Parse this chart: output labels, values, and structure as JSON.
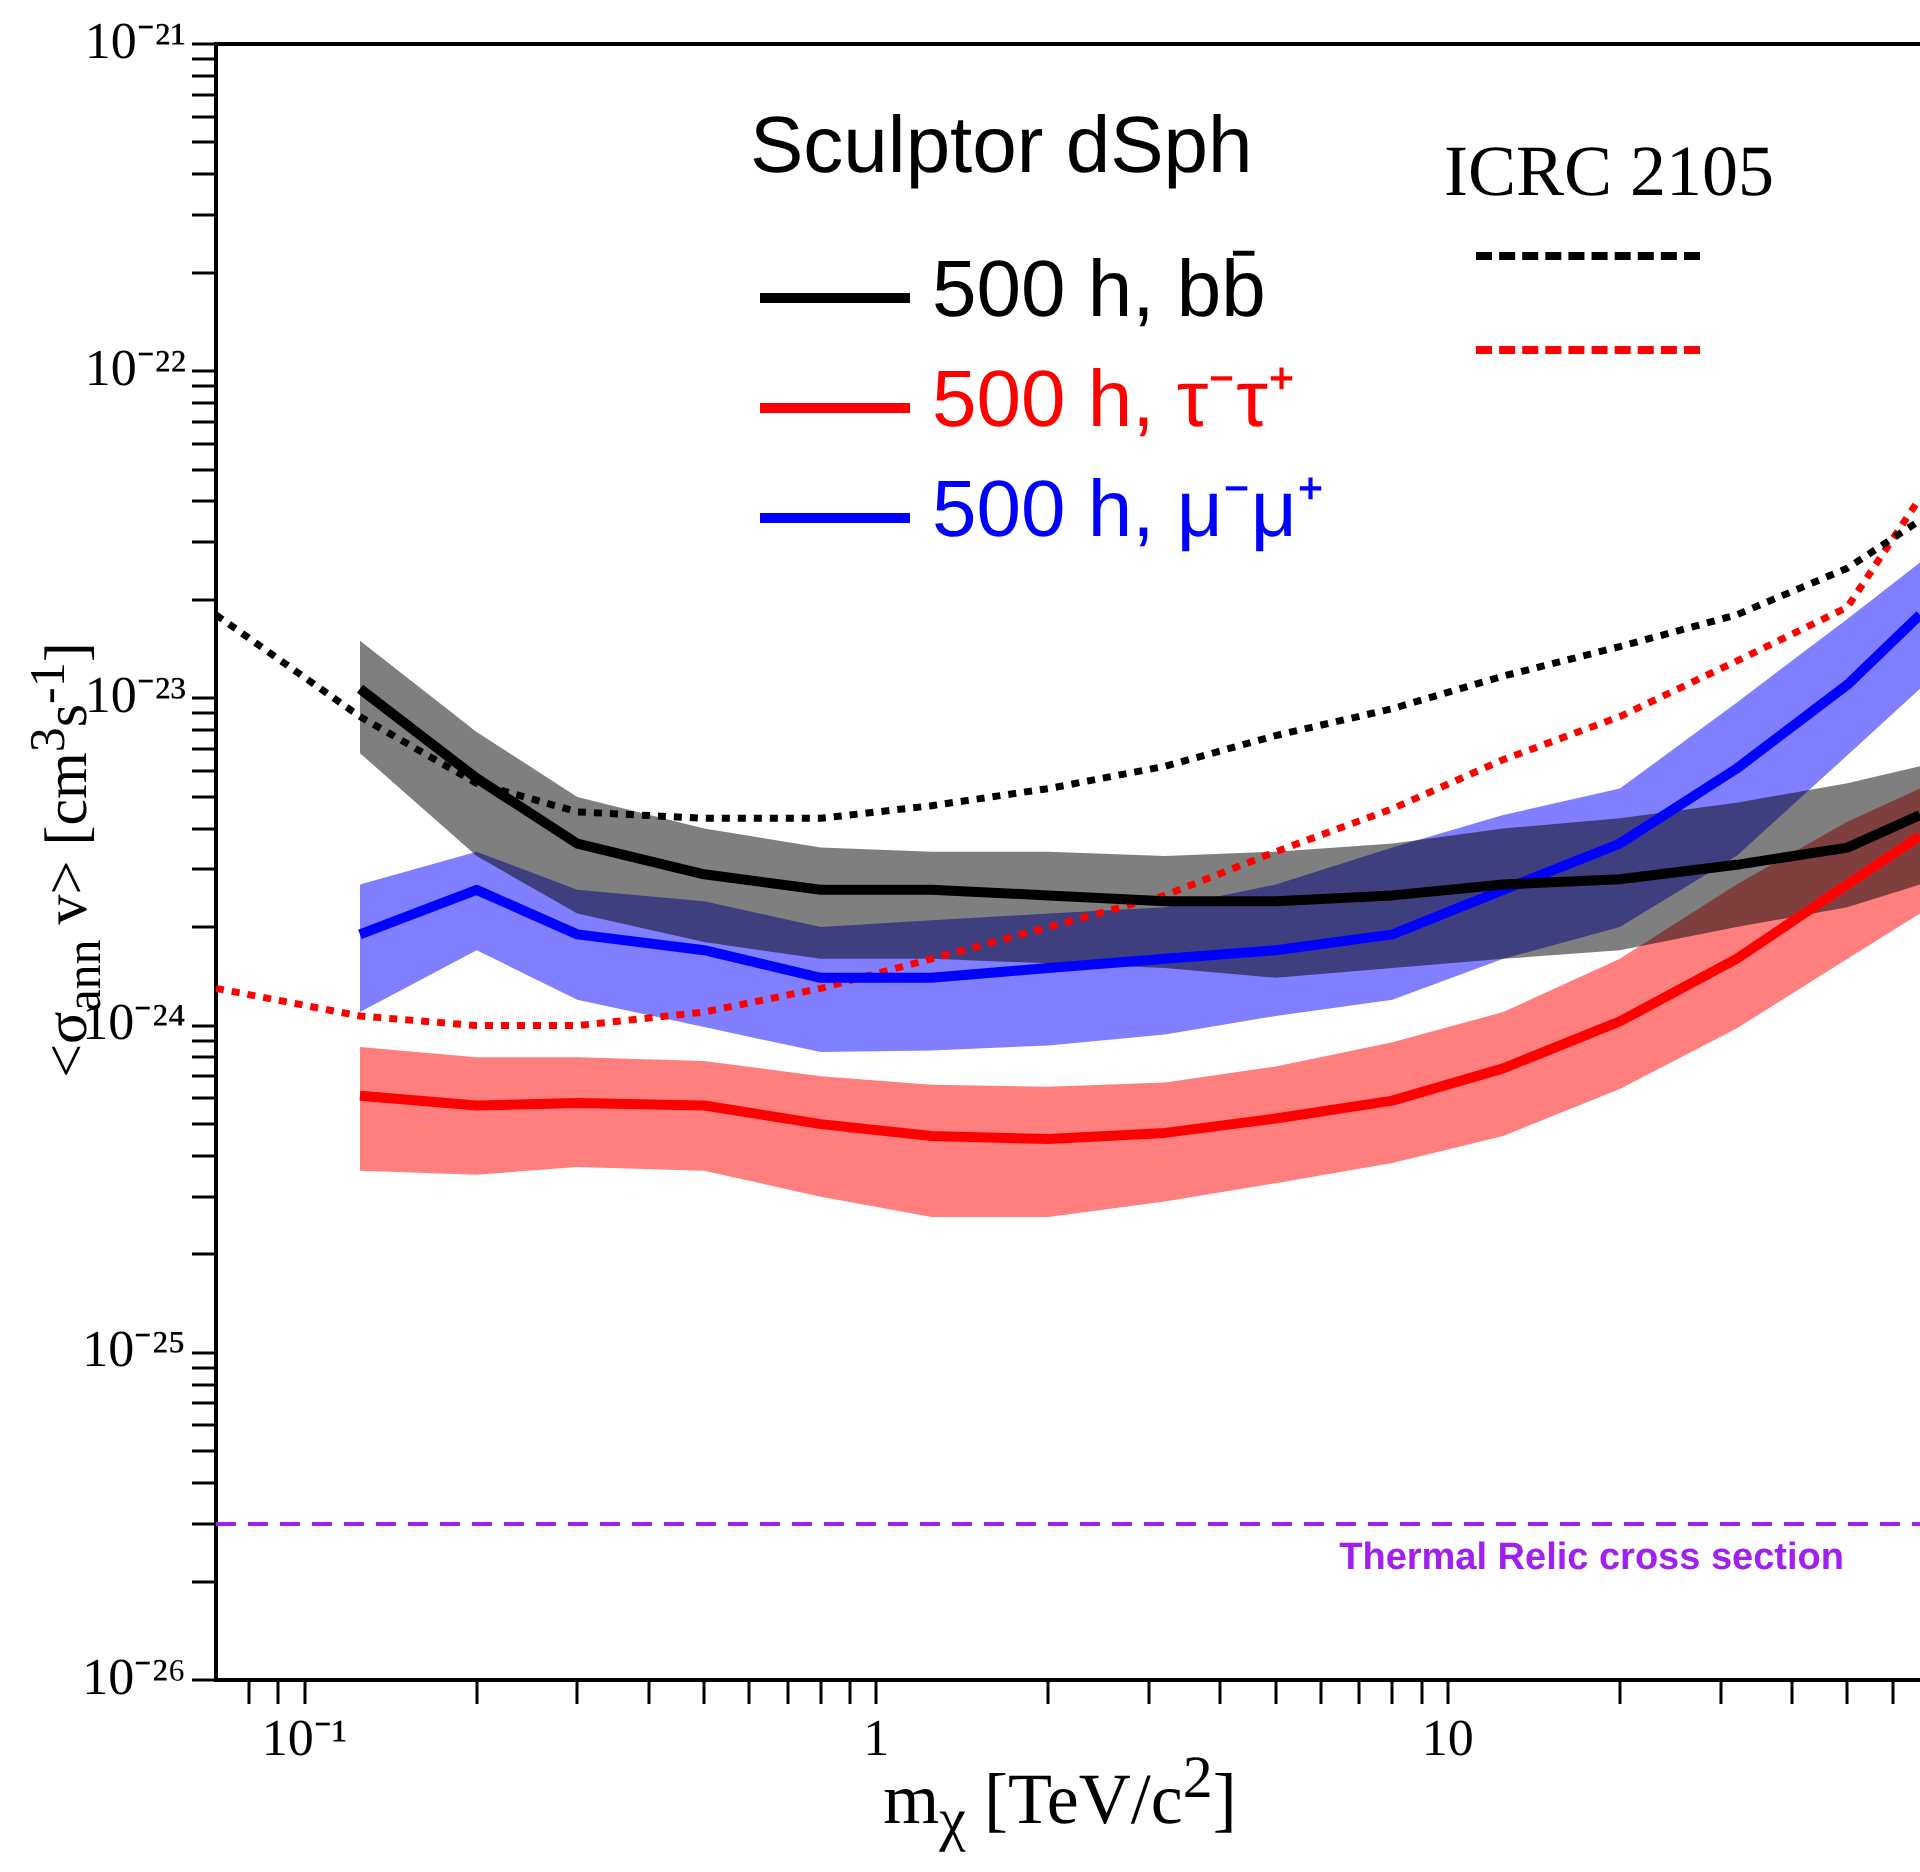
{
  "chart_data": {
    "type": "line",
    "xlabel": "m$_{χ}$ [TeV/c$^{2}$]",
    "ylabel": "<σ$_{ann}$ v> [cm$^{3}$s$^{-1}$]",
    "legend_title": "Sculptor dSph",
    "annotations": [
      "ICRC 2105"
    ],
    "x": [
      0.125,
      0.2,
      0.3,
      0.5,
      0.8,
      1.25,
      2,
      3.2,
      5,
      8,
      12.5,
      20,
      32,
      50,
      67
    ],
    "series": [
      {
        "name": "500 h, bb̄",
        "color": "#000000",
        "values": [
          1.07e-23,
          5.7e-24,
          3.6e-24,
          2.9e-24,
          2.6e-24,
          2.6e-24,
          2.5e-24,
          2.4e-24,
          2.4e-24,
          2.5e-24,
          2.7e-24,
          2.8e-24,
          3.1e-24,
          3.5e-24,
          4.4e-24
        ],
        "upper": [
          1.5e-23,
          7.9e-24,
          5e-24,
          4e-24,
          3.5e-24,
          3.4e-24,
          3.4e-24,
          3.3e-24,
          3.4e-24,
          3.6e-24,
          4e-24,
          4.3e-24,
          4.8e-24,
          5.5e-24,
          6.2e-24
        ],
        "lower": [
          6.8e-24,
          3.3e-24,
          2.2e-24,
          1.8e-24,
          1.6e-24,
          1.6e-24,
          1.55e-24,
          1.5e-24,
          1.4e-24,
          1.5e-24,
          1.6e-24,
          1.7e-24,
          2e-24,
          2.3e-24,
          2.7e-24
        ]
      },
      {
        "name": "500 h, τ⁻τ⁺",
        "color": "#ff0000",
        "values": [
          6.1e-25,
          5.7e-25,
          5.8e-25,
          5.7e-25,
          5e-25,
          4.6e-25,
          4.5e-25,
          4.7e-25,
          5.2e-25,
          5.9e-25,
          7.4e-25,
          1.03e-24,
          1.6e-24,
          2.7e-24,
          3.8e-24
        ],
        "upper": [
          8.6e-25,
          8e-25,
          8e-25,
          7.8e-25,
          7e-25,
          6.6e-25,
          6.5e-25,
          6.7e-25,
          7.5e-25,
          8.9e-25,
          1.1e-24,
          1.6e-24,
          2.7e-24,
          4.2e-24,
          5.3e-24
        ],
        "lower": [
          3.6e-25,
          3.5e-25,
          3.7e-25,
          3.6e-25,
          3e-25,
          2.6e-25,
          2.6e-25,
          2.9e-25,
          3.3e-25,
          3.8e-25,
          4.6e-25,
          6.4e-25,
          9.8e-25,
          1.6e-24,
          2.2e-24
        ]
      },
      {
        "name": "500 h, μ⁻μ⁺",
        "color": "#0000ff",
        "values": [
          1.9e-24,
          2.6e-24,
          1.9e-24,
          1.7e-24,
          1.4e-24,
          1.4e-24,
          1.5e-24,
          1.6e-24,
          1.7e-24,
          1.9e-24,
          2.6e-24,
          3.6e-24,
          6.1e-24,
          1.1e-23,
          1.8e-23
        ],
        "upper": [
          2.7e-24,
          3.4e-24,
          2.6e-24,
          2.4e-24,
          2e-24,
          2.1e-24,
          2.2e-24,
          2.3e-24,
          2.7e-24,
          3.5e-24,
          4.4e-24,
          5.3e-24,
          9.7e-24,
          1.75e-23,
          2.6e-23
        ],
        "lower": [
          1.1e-24,
          1.7e-24,
          1.2e-24,
          9.9e-25,
          8.3e-25,
          8.4e-25,
          8.7e-25,
          9.4e-25,
          1.07e-24,
          1.2e-24,
          1.6e-24,
          2e-24,
          3.3e-24,
          6.7e-24,
          1.07e-23
        ]
      },
      {
        "color": "#000000",
        "line_style": "dotted",
        "x": [
          0.07,
          0.125,
          0.2,
          0.3,
          0.5,
          0.8,
          1.25,
          2,
          3.2,
          5,
          8,
          12.5,
          20,
          32,
          50,
          67
        ],
        "values": [
          1.8e-23,
          8.8e-24,
          5.5e-24,
          4.5e-24,
          4.3e-24,
          4.3e-24,
          4.7e-24,
          5.3e-24,
          6.2e-24,
          7.7e-24,
          9.3e-24,
          1.17e-23,
          1.44e-23,
          1.8e-23,
          2.5e-23,
          3.5e-23
        ]
      },
      {
        "color": "#ff0000",
        "line_style": "dotted",
        "x": [
          0.07,
          0.125,
          0.2,
          0.3,
          0.5,
          0.8,
          1.25,
          2,
          3.2,
          5,
          8,
          12.5,
          20,
          32,
          50,
          67
        ],
        "values": [
          1.3e-24,
          1.07e-24,
          1e-24,
          1e-24,
          1.1e-24,
          1.3e-24,
          1.6e-24,
          2e-24,
          2.5e-24,
          3.4e-24,
          4.6e-24,
          6.5e-24,
          8.8e-24,
          1.3e-23,
          1.9e-23,
          4.1e-23
        ]
      }
    ],
    "ref_lines": [
      {
        "axis": "y",
        "value": 3e-26,
        "label": "Thermal Relic cross section",
        "color": "#a020f0",
        "line_style": "dashed"
      }
    ],
    "log": "xy",
    "xlim": [
      0.07,
      67
    ],
    "ylim": [
      1e-26,
      1e-21
    ],
    "xticks": [
      {
        "value": 0.08,
        "label": null
      },
      {
        "value": 0.09,
        "label": null
      },
      {
        "value": 0.1,
        "label": "10⁻¹"
      },
      {
        "value": 0.2,
        "label": null
      },
      {
        "value": 0.3,
        "label": null
      },
      {
        "value": 0.4,
        "label": null
      },
      {
        "value": 0.5,
        "label": null
      },
      {
        "value": 0.6,
        "label": null
      },
      {
        "value": 0.7,
        "label": null
      },
      {
        "value": 0.8,
        "label": null
      },
      {
        "value": 0.9,
        "label": null
      },
      1,
      {
        "value": 2,
        "label": null
      },
      {
        "value": 3,
        "label": null
      },
      {
        "value": 4,
        "label": null
      },
      {
        "value": 5,
        "label": null
      },
      {
        "value": 6,
        "label": null
      },
      {
        "value": 7,
        "label": null
      },
      {
        "value": 8,
        "label": null
      },
      {
        "value": 9,
        "label": null
      },
      10,
      {
        "value": 20,
        "label": null
      },
      {
        "value": 30,
        "label": null
      },
      {
        "value": 40,
        "label": null
      },
      {
        "value": 50,
        "label": null
      },
      {
        "value": 60,
        "label": null
      }
    ],
    "yticks": [
      {
        "value": 1e-26,
        "label": "10⁻²⁶"
      },
      {
        "value": 2e-26,
        "label": null
      },
      {
        "value": 3e-26,
        "label": null
      },
      {
        "value": 4e-26,
        "label": null
      },
      {
        "value": 5e-26,
        "label": null
      },
      {
        "value": 6e-26,
        "label": null
      },
      {
        "value": 7e-26,
        "label": null
      },
      {
        "value": 8e-26,
        "label": null
      },
      {
        "value": 9e-26,
        "label": null
      },
      {
        "value": 1e-25,
        "label": "10⁻²⁵"
      },
      {
        "value": 2e-25,
        "label": null
      },
      {
        "value": 3e-25,
        "label": null
      },
      {
        "value": 4e-25,
        "label": null
      },
      {
        "value": 5e-25,
        "label": null
      },
      {
        "value": 6e-25,
        "label": null
      },
      {
        "value": 7e-25,
        "label": null
      },
      {
        "value": 8e-25,
        "label": null
      },
      {
        "value": 9e-25,
        "label": null
      },
      {
        "value": 1e-24,
        "label": "10⁻²⁴"
      },
      {
        "value": 2e-24,
        "label": null
      },
      {
        "value": 3e-24,
        "label": null
      },
      {
        "value": 4e-24,
        "label": null
      },
      {
        "value": 5e-24,
        "label": null
      },
      {
        "value": 6e-24,
        "label": null
      },
      {
        "value": 7e-24,
        "label": null
      },
      {
        "value": 8e-24,
        "label": null
      },
      {
        "value": 9e-24,
        "label": null
      },
      {
        "value": 1e-23,
        "label": "10⁻²³"
      },
      {
        "value": 2e-23,
        "label": null
      },
      {
        "value": 3e-23,
        "label": null
      },
      {
        "value": 4e-23,
        "label": null
      },
      {
        "value": 5e-23,
        "label": null
      },
      {
        "value": 6e-23,
        "label": null
      },
      {
        "value": 7e-23,
        "label": null
      },
      {
        "value": 8e-23,
        "label": null
      },
      {
        "value": 9e-23,
        "label": null
      },
      {
        "value": 1e-22,
        "label": "10⁻²²"
      },
      {
        "value": 2e-22,
        "label": null
      },
      {
        "value": 3e-22,
        "label": null
      },
      {
        "value": 4e-22,
        "label": null
      },
      {
        "value": 5e-22,
        "label": null
      },
      {
        "value": 6e-22,
        "label": null
      },
      {
        "value": 7e-22,
        "label": null
      },
      {
        "value": 8e-22,
        "label": null
      },
      {
        "value": 9e-22,
        "label": null
      },
      {
        "value": 1e-21,
        "label": "10⁻²¹"
      }
    ],
    "grid": false,
    "legend": "top right",
    "marker": "none",
    "line_style": "solid"
  }
}
